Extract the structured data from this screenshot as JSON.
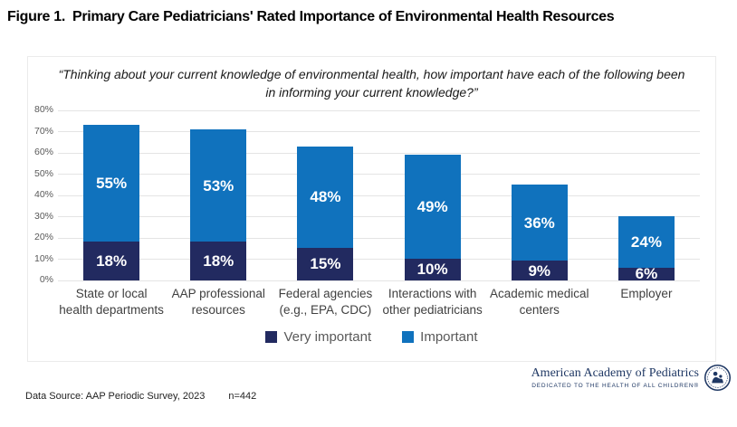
{
  "figure": {
    "label": "Figure 1.",
    "title": "Primary Care Pediatricians' Rated Importance of Environmental Health Resources"
  },
  "chart_data": {
    "type": "bar",
    "stacked": true,
    "title": "“Thinking about your current knowledge of environmental health, how important have each of the following been in informing your current knowledge?”",
    "categories": [
      "State or local health departments",
      "AAP professional resources",
      "Federal agencies (e.g., EPA, CDC)",
      "Interactions with other pediatricians",
      "Academic medical centers",
      "Employer"
    ],
    "series": [
      {
        "name": "Very important",
        "color": "#222a60",
        "values": [
          18,
          18,
          15,
          10,
          9,
          6
        ]
      },
      {
        "name": "Important",
        "color": "#1072bd",
        "values": [
          55,
          53,
          48,
          49,
          36,
          24
        ]
      }
    ],
    "totals": [
      73,
      70,
      63,
      59,
      45,
      30
    ],
    "ylim": [
      0,
      80
    ],
    "ytick_step": 10,
    "ytick_suffix": "%",
    "grid": true,
    "legend_position": "bottom",
    "data_label_suffix": "%",
    "gridline_color": "#e4e4e4"
  },
  "footer": {
    "data_source": "Data Source: AAP Periodic Survey, 2023",
    "n_label": "n=442"
  },
  "logo": {
    "org_name": "American Academy of Pediatrics",
    "tagline": "DEDICATED TO THE HEALTH OF ALL CHILDREN®",
    "color": "#1f3864"
  }
}
